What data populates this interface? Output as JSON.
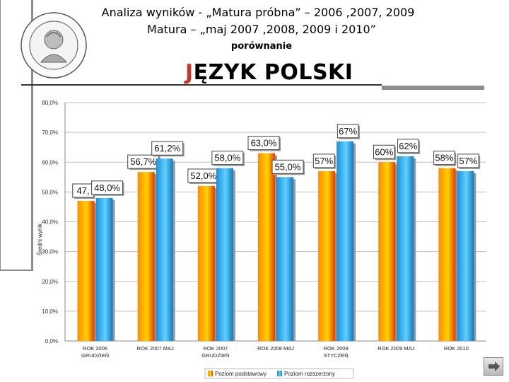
{
  "header": {
    "line1": "Analiza wyników  - „Matura próbna” – 2006 ,2007, 2009",
    "line2": "Matura – „maj 2007 ,2008, 2009 i 2010”",
    "line3": "porównanie",
    "subject_first": "J",
    "subject_rest": "ĘZYK POLSKI"
  },
  "colors": {
    "basic_gradient": [
      "#ff8a00",
      "#ffd200",
      "#e03a00"
    ],
    "extended_gradient": [
      "#1a8fd8",
      "#5fd0ff",
      "#1577b8"
    ],
    "grid": "#bfbfbf",
    "label_border": "#444444"
  },
  "icons": {
    "seal": "school-seal-icon",
    "nav": "next-arrow-icon"
  },
  "chart_data": {
    "type": "bar",
    "ylabel": "Średni wynik",
    "ylim": [
      0,
      80
    ],
    "yticks": [
      "0,0%",
      "10,0%",
      "20,0%",
      "30,0%",
      "40,0%",
      "50,0%",
      "60,0%",
      "70,0%",
      "80,0%"
    ],
    "categories": [
      [
        "ROK 2006",
        "GRUDZIEŃ"
      ],
      [
        "ROK 2007 MAJ"
      ],
      [
        "ROK 2007",
        "GRUDZIEŃ"
      ],
      [
        "ROK 2008 MAJ"
      ],
      [
        "ROK 2009",
        "STYCZEŃ"
      ],
      [
        "ROK 2009 MAJ"
      ],
      [
        "ROK 2010"
      ]
    ],
    "series": [
      {
        "name": "Poziom podstawowy",
        "values": [
          47,
          56.7,
          52.0,
          63.0,
          57,
          60,
          58
        ],
        "labels": [
          "47,",
          "56,7%",
          "52,0%",
          "63,0%",
          "57%",
          "60%",
          "58%"
        ]
      },
      {
        "name": "Poziom rozszerzony",
        "values": [
          48.0,
          61.2,
          58.0,
          55.0,
          67,
          62,
          57
        ],
        "labels": [
          "48,0%",
          "61,2%",
          "58,0%",
          "55,0%",
          "67%",
          "62%",
          "57%"
        ]
      }
    ],
    "grid": true,
    "legend": "bottom"
  }
}
